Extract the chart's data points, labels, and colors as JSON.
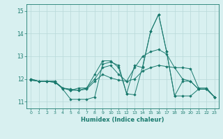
{
  "title": "",
  "xlabel": "Humidex (Indice chaleur)",
  "xlim": [
    -0.5,
    23.5
  ],
  "ylim": [
    10.7,
    15.3
  ],
  "yticks": [
    11,
    12,
    13,
    14,
    15
  ],
  "xticks": [
    0,
    1,
    2,
    3,
    4,
    5,
    6,
    7,
    8,
    9,
    10,
    11,
    12,
    13,
    14,
    15,
    16,
    17,
    18,
    19,
    20,
    21,
    22,
    23
  ],
  "bg_color": "#d8f0f0",
  "grid_color": "#b8d8d8",
  "line_color": "#1a7a6e",
  "series": [
    {
      "x": [
        0,
        1,
        2,
        3,
        4,
        5,
        6,
        7,
        8,
        9,
        10,
        11,
        12,
        13,
        14,
        15,
        16,
        17,
        18,
        19,
        20,
        21,
        22,
        23
      ],
      "y": [
        11.95,
        11.9,
        11.9,
        11.9,
        11.55,
        11.1,
        11.1,
        11.1,
        11.2,
        12.65,
        12.75,
        12.6,
        11.35,
        11.3,
        12.55,
        14.1,
        14.85,
        13.2,
        11.25,
        11.25,
        11.25,
        11.55,
        11.55,
        11.2
      ],
      "marker": "D",
      "markersize": 1.8
    },
    {
      "x": [
        0,
        1,
        2,
        3,
        4,
        5,
        6,
        7,
        8,
        9,
        10,
        11,
        12,
        13,
        14,
        15,
        16,
        17,
        18,
        19,
        20,
        21,
        22,
        23
      ],
      "y": [
        11.95,
        11.9,
        11.9,
        11.9,
        11.6,
        11.55,
        11.5,
        11.55,
        11.9,
        12.2,
        12.05,
        11.95,
        11.9,
        12.0,
        12.35,
        12.5,
        12.6,
        12.55,
        12.5,
        12.5,
        12.45,
        11.6,
        11.6,
        11.2
      ],
      "marker": "D",
      "markersize": 1.8
    },
    {
      "x": [
        0,
        1,
        2,
        3,
        4,
        5,
        6,
        7,
        8,
        9,
        10,
        11,
        12,
        13,
        14,
        15,
        16,
        17,
        18,
        19,
        20,
        21,
        22,
        23
      ],
      "y": [
        12.0,
        11.9,
        11.9,
        11.85,
        11.6,
        11.5,
        11.5,
        11.6,
        12.0,
        12.5,
        12.6,
        12.2,
        11.9,
        12.5,
        13.0,
        13.2,
        13.3,
        13.1,
        12.5,
        12.0,
        11.9,
        11.55,
        11.55,
        11.2
      ],
      "marker": "D",
      "markersize": 1.8
    },
    {
      "x": [
        0,
        1,
        2,
        3,
        4,
        5,
        6,
        7,
        8,
        9,
        10,
        11,
        12,
        13,
        14,
        15,
        16,
        17,
        18,
        19,
        20,
        21,
        22,
        23
      ],
      "y": [
        12.0,
        11.9,
        11.9,
        11.85,
        11.6,
        11.5,
        11.6,
        11.6,
        12.2,
        12.8,
        12.8,
        12.5,
        11.35,
        12.6,
        12.5,
        14.1,
        14.85,
        13.2,
        11.25,
        11.9,
        11.9,
        11.55,
        11.55,
        11.2
      ],
      "marker": "D",
      "markersize": 1.8
    }
  ]
}
